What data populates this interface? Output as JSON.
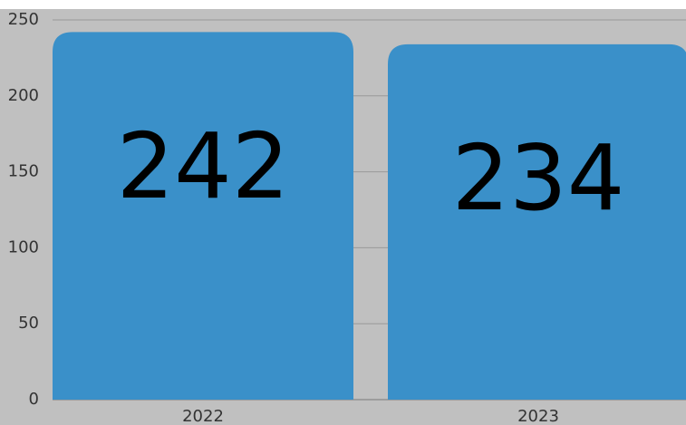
{
  "chart_data": {
    "type": "bar",
    "categories": [
      "2022",
      "2023"
    ],
    "values": [
      242,
      234
    ],
    "color": "#3a90c9",
    "ylim": [
      0,
      250
    ],
    "yticks": [
      0,
      50,
      100,
      150,
      200,
      250
    ],
    "grid": true
  }
}
